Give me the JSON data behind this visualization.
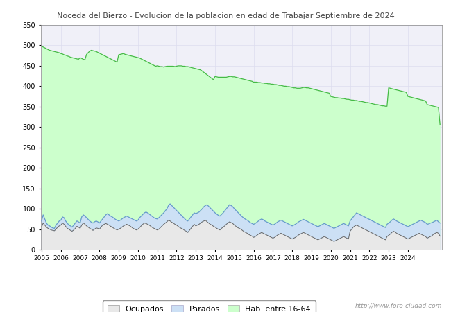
{
  "title_line1": "Noceda del Bierzo - Evolucion de la poblacion en edad de Trabajar Septiembre de 2024",
  "title_color": "#444444",
  "ylim": [
    0,
    550
  ],
  "yticks": [
    0,
    50,
    100,
    150,
    200,
    250,
    300,
    350,
    400,
    450,
    500,
    550
  ],
  "legend_labels": [
    "Ocupados",
    "Parados",
    "Hab. entre 16-64"
  ],
  "watermark": "http://www.foro-ciudad.com",
  "color_hab": "#ccffcc",
  "color_hab_line": "#44bb44",
  "color_parados": "#cce0f5",
  "color_parados_line": "#6699cc",
  "color_ocupados": "#e8e8e8",
  "color_ocupados_line": "#666666",
  "grid_color": "#ddddee",
  "plot_bg": "#f0f0f8",
  "fig_bg": "#ffffff",
  "hab_16_64": [
    498,
    496,
    494,
    492,
    490,
    488,
    487,
    486,
    485,
    484,
    483,
    482,
    480,
    479,
    477,
    476,
    474,
    473,
    471,
    470,
    469,
    468,
    467,
    466,
    470,
    468,
    466,
    465,
    478,
    482,
    486,
    488,
    487,
    486,
    485,
    483,
    481,
    479,
    477,
    475,
    473,
    471,
    469,
    467,
    465,
    463,
    461,
    459,
    477,
    478,
    479,
    480,
    478,
    477,
    476,
    475,
    474,
    473,
    472,
    471,
    470,
    469,
    467,
    465,
    463,
    461,
    459,
    457,
    455,
    453,
    451,
    449,
    450,
    449,
    448,
    448,
    447,
    448,
    449,
    449,
    449,
    449,
    449,
    448,
    449,
    450,
    450,
    450,
    449,
    449,
    448,
    448,
    447,
    446,
    445,
    444,
    443,
    442,
    441,
    440,
    437,
    434,
    431,
    428,
    425,
    422,
    419,
    416,
    424,
    423,
    422,
    422,
    422,
    422,
    422,
    422,
    423,
    424,
    424,
    423,
    423,
    422,
    421,
    420,
    419,
    418,
    417,
    416,
    415,
    414,
    413,
    412,
    410,
    410,
    410,
    409,
    409,
    408,
    408,
    407,
    407,
    406,
    406,
    405,
    405,
    404,
    404,
    403,
    402,
    402,
    401,
    400,
    400,
    399,
    399,
    398,
    397,
    396,
    396,
    395,
    395,
    395,
    396,
    397,
    397,
    396,
    396,
    395,
    394,
    393,
    392,
    391,
    390,
    389,
    388,
    387,
    386,
    385,
    384,
    383,
    375,
    374,
    373,
    372,
    372,
    371,
    371,
    370,
    370,
    369,
    368,
    368,
    367,
    366,
    366,
    365,
    365,
    364,
    363,
    363,
    362,
    361,
    360,
    360,
    359,
    358,
    357,
    356,
    355,
    355,
    354,
    353,
    352,
    352,
    351,
    351,
    396,
    395,
    394,
    393,
    392,
    391,
    390,
    389,
    388,
    387,
    386,
    385,
    375,
    374,
    373,
    372,
    371,
    370,
    369,
    368,
    367,
    366,
    365,
    364,
    355,
    354,
    353,
    352,
    351,
    350,
    349,
    348,
    305
  ],
  "parados": [
    70,
    85,
    75,
    65,
    60,
    58,
    55,
    53,
    52,
    60,
    65,
    70,
    72,
    80,
    78,
    70,
    65,
    60,
    58,
    55,
    60,
    65,
    70,
    68,
    65,
    80,
    85,
    82,
    78,
    74,
    70,
    67,
    65,
    68,
    70,
    68,
    65,
    70,
    75,
    80,
    85,
    88,
    85,
    82,
    80,
    77,
    74,
    72,
    70,
    72,
    75,
    78,
    80,
    82,
    80,
    78,
    76,
    74,
    72,
    70,
    72,
    78,
    82,
    86,
    90,
    92,
    90,
    87,
    84,
    81,
    78,
    76,
    75,
    78,
    82,
    86,
    90,
    95,
    100,
    108,
    112,
    108,
    104,
    100,
    96,
    92,
    88,
    84,
    80,
    76,
    72,
    70,
    75,
    80,
    85,
    90,
    88,
    90,
    92,
    96,
    100,
    105,
    108,
    110,
    106,
    102,
    98,
    94,
    90,
    87,
    84,
    82,
    86,
    90,
    95,
    100,
    105,
    110,
    108,
    105,
    100,
    96,
    92,
    88,
    84,
    80,
    77,
    74,
    72,
    69,
    66,
    64,
    62,
    64,
    67,
    70,
    73,
    75,
    73,
    70,
    68,
    66,
    64,
    62,
    60,
    62,
    65,
    68,
    70,
    72,
    70,
    68,
    66,
    64,
    62,
    60,
    58,
    60,
    62,
    65,
    68,
    70,
    72,
    74,
    72,
    70,
    68,
    66,
    64,
    62,
    60,
    58,
    56,
    58,
    60,
    62,
    64,
    62,
    60,
    58,
    56,
    54,
    52,
    54,
    56,
    58,
    60,
    62,
    64,
    62,
    60,
    58,
    70,
    75,
    80,
    85,
    90,
    88,
    86,
    84,
    82,
    80,
    78,
    76,
    74,
    72,
    70,
    68,
    66,
    64,
    62,
    60,
    58,
    56,
    54,
    62,
    65,
    68,
    72,
    75,
    73,
    70,
    68,
    66,
    64,
    62,
    60,
    58,
    56,
    58,
    60,
    62,
    64,
    66,
    68,
    70,
    72,
    70,
    68,
    66,
    62,
    63,
    65,
    66,
    68,
    70,
    72,
    68,
    65
  ],
  "ocupados": [
    55,
    65,
    60,
    55,
    52,
    50,
    48,
    47,
    46,
    50,
    55,
    58,
    60,
    65,
    62,
    57,
    52,
    50,
    47,
    45,
    48,
    52,
    57,
    55,
    52,
    60,
    65,
    62,
    58,
    55,
    52,
    50,
    47,
    50,
    53,
    52,
    50,
    55,
    60,
    62,
    64,
    62,
    60,
    57,
    55,
    52,
    50,
    48,
    50,
    52,
    55,
    58,
    60,
    62,
    60,
    58,
    55,
    52,
    50,
    48,
    50,
    54,
    58,
    62,
    65,
    64,
    62,
    60,
    57,
    54,
    52,
    50,
    48,
    50,
    54,
    58,
    62,
    65,
    68,
    72,
    70,
    67,
    65,
    62,
    60,
    57,
    54,
    52,
    50,
    47,
    45,
    42,
    47,
    52,
    57,
    62,
    58,
    60,
    62,
    65,
    68,
    70,
    72,
    68,
    65,
    62,
    60,
    57,
    55,
    52,
    50,
    48,
    52,
    55,
    58,
    62,
    65,
    68,
    66,
    64,
    60,
    57,
    54,
    52,
    50,
    47,
    44,
    42,
    40,
    37,
    35,
    33,
    30,
    32,
    35,
    38,
    40,
    42,
    40,
    38,
    36,
    34,
    32,
    30,
    28,
    30,
    33,
    36,
    38,
    40,
    38,
    36,
    34,
    32,
    30,
    28,
    26,
    28,
    30,
    33,
    36,
    38,
    40,
    42,
    40,
    38,
    36,
    34,
    32,
    30,
    28,
    26,
    24,
    26,
    28,
    30,
    32,
    30,
    28,
    26,
    24,
    22,
    20,
    22,
    24,
    26,
    28,
    30,
    32,
    30,
    28,
    26,
    45,
    50,
    55,
    58,
    60,
    58,
    56,
    54,
    52,
    50,
    48,
    46,
    44,
    42,
    40,
    38,
    36,
    34,
    32,
    30,
    28,
    26,
    24,
    32,
    35,
    38,
    42,
    45,
    43,
    40,
    38,
    36,
    34,
    32,
    30,
    28,
    26,
    28,
    30,
    32,
    34,
    36,
    38,
    40,
    38,
    36,
    34,
    32,
    28,
    30,
    32,
    34,
    38,
    40,
    42,
    40,
    33
  ],
  "start_year": 2005,
  "end_label": "2024"
}
